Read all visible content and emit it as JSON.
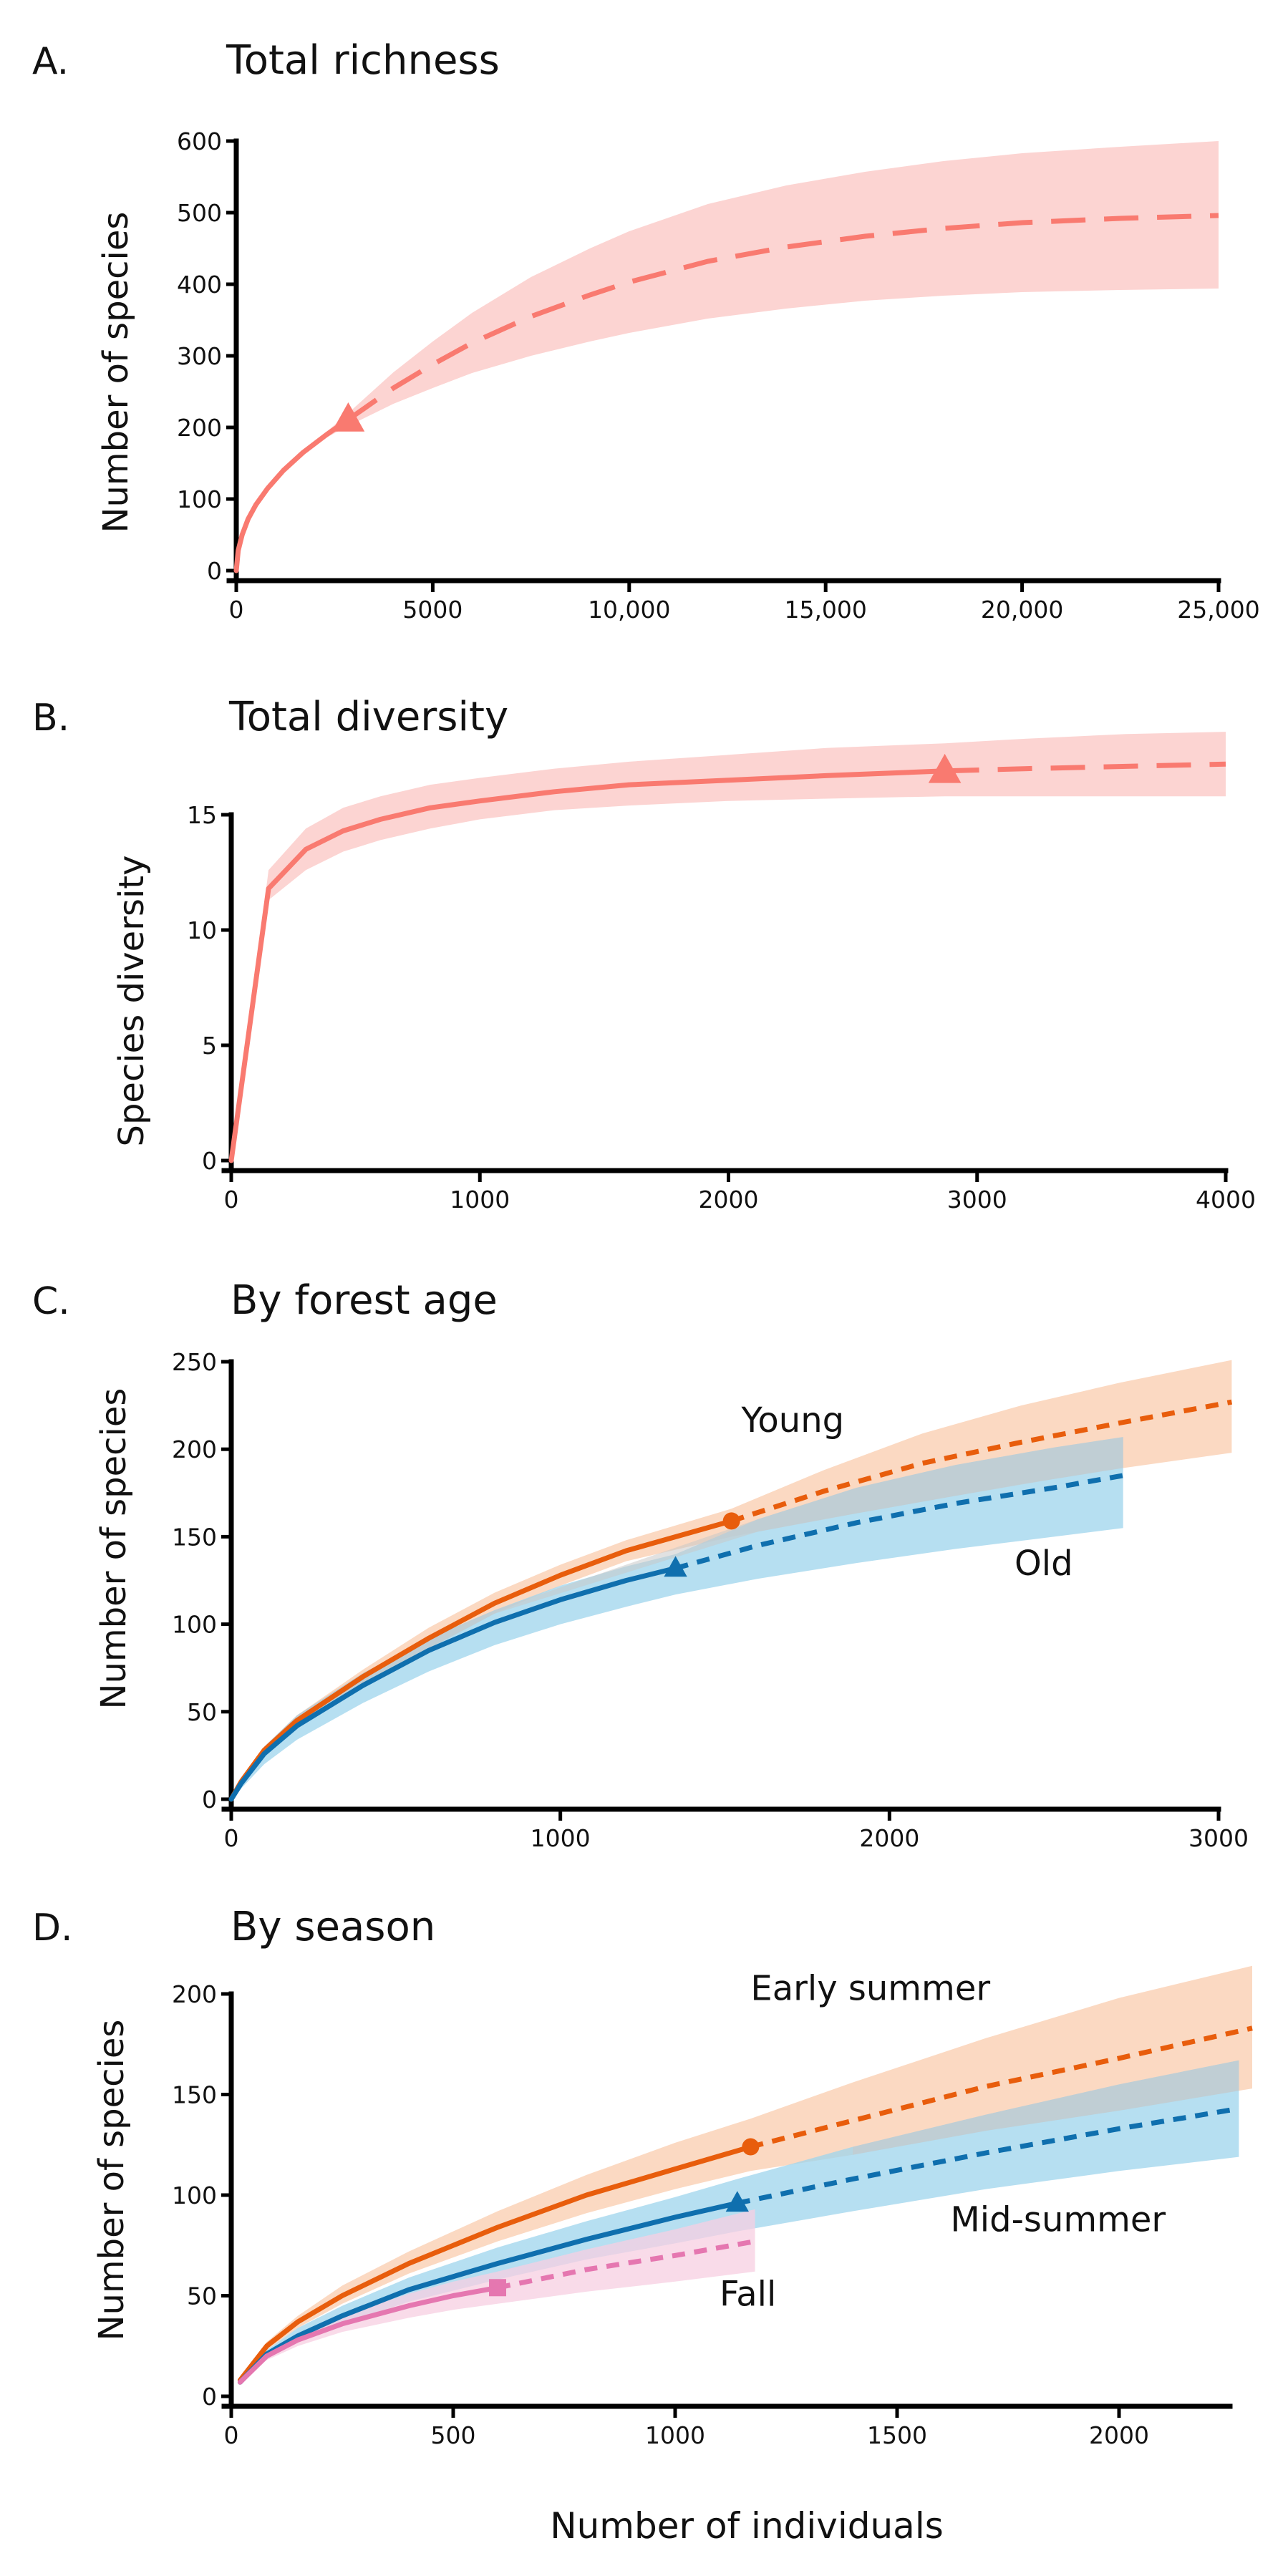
{
  "colors": {
    "total": "#f97a70",
    "total_band": "#fcd2d0",
    "young": "#e85d0c",
    "young_band": "#fbd7bf",
    "old": "#0f6fae",
    "old_band": "#9dd4ec",
    "overlap": "#c8c8c8",
    "fall": "#e577b0",
    "fall_band": "#f7cfe2"
  },
  "x_axis_label": "Number of individuals",
  "chart_data": [
    {
      "id": "A",
      "label": "A.",
      "type": "line",
      "title": "Total richness",
      "ylabel": "Number of species",
      "xlim": [
        0,
        25000
      ],
      "ylim": [
        0,
        600
      ],
      "xticks": [
        0,
        5000,
        10000,
        15000,
        20000,
        25000
      ],
      "xtick_labels": [
        "0",
        "5000",
        "10,000",
        "15,000",
        "20,000",
        "25,000"
      ],
      "yticks": [
        0,
        100,
        200,
        300,
        400,
        500,
        600
      ],
      "ytick_labels": [
        "0",
        "100",
        "200",
        "300",
        "400",
        "500",
        "600"
      ],
      "series": [
        {
          "name": "Total",
          "color": "#f97a70",
          "band": "#fcd2d0",
          "dash": "48 26",
          "marker": "triangle",
          "observed": {
            "x": 2850,
            "y": 211
          },
          "x": [
            0,
            50,
            150,
            300,
            500,
            800,
            1200,
            1700,
            2300,
            2850,
            4000,
            5000,
            6000,
            7500,
            9000,
            10000,
            12000,
            14000,
            16000,
            18000,
            20000,
            22500,
            25000
          ],
          "y": [
            0,
            28,
            50,
            72,
            92,
            115,
            140,
            165,
            190,
            211,
            255,
            288,
            318,
            355,
            385,
            403,
            432,
            452,
            467,
            478,
            486,
            492,
            496
          ],
          "lower": [
            0,
            28,
            50,
            72,
            92,
            115,
            140,
            163,
            186,
            202,
            233,
            255,
            276,
            300,
            320,
            332,
            352,
            366,
            377,
            384,
            389,
            392,
            394
          ],
          "upper": [
            0,
            28,
            50,
            72,
            92,
            115,
            140,
            167,
            194,
            220,
            277,
            320,
            360,
            410,
            450,
            474,
            512,
            538,
            557,
            572,
            583,
            592,
            600
          ]
        }
      ]
    },
    {
      "id": "B",
      "label": "B.",
      "type": "line",
      "title": "Total diversity",
      "ylabel": "Species diversity",
      "xlim": [
        0,
        4000
      ],
      "ylim": [
        0,
        15
      ],
      "xticks": [
        0,
        1000,
        2000,
        3000,
        4000
      ],
      "xtick_labels": [
        "0",
        "1000",
        "2000",
        "3000",
        "4000"
      ],
      "yticks": [
        0,
        5,
        10,
        15
      ],
      "ytick_labels": [
        "0",
        "5",
        "10",
        "15"
      ],
      "series": [
        {
          "name": "Total",
          "color": "#f97a70",
          "band": "#fcd2d0",
          "dash": "48 26",
          "marker": "triangle",
          "observed": {
            "x": 2870,
            "y": 16.9
          },
          "x": [
            0,
            150,
            300,
            450,
            600,
            800,
            1000,
            1300,
            1600,
            2000,
            2400,
            2870,
            3200,
            3600,
            4000
          ],
          "y": [
            0,
            11.8,
            13.5,
            14.3,
            14.8,
            15.3,
            15.6,
            16.0,
            16.3,
            16.5,
            16.7,
            16.9,
            17.0,
            17.1,
            17.2
          ],
          "lower": [
            0,
            11.3,
            12.6,
            13.4,
            13.9,
            14.4,
            14.8,
            15.2,
            15.4,
            15.6,
            15.7,
            15.8,
            15.8,
            15.8,
            15.8
          ],
          "upper": [
            0,
            12.6,
            14.4,
            15.3,
            15.8,
            16.3,
            16.6,
            17.0,
            17.3,
            17.6,
            17.9,
            18.1,
            18.3,
            18.5,
            18.6
          ]
        }
      ]
    },
    {
      "id": "C",
      "label": "C.",
      "type": "line",
      "title": "By forest age",
      "ylabel": "Number of species",
      "xlim": [
        0,
        3000
      ],
      "ylim": [
        0,
        250
      ],
      "xticks": [
        0,
        1000,
        2000,
        3000
      ],
      "xtick_labels": [
        "0",
        "1000",
        "2000",
        "3000"
      ],
      "yticks": [
        0,
        50,
        100,
        150,
        200,
        250
      ],
      "ytick_labels": [
        "0",
        "50",
        "100",
        "150",
        "200",
        "250"
      ],
      "annotations": [
        {
          "text": "Young",
          "x": 1550,
          "y": 210
        },
        {
          "text": "Old",
          "x": 2380,
          "y": 128
        }
      ],
      "series": [
        {
          "name": "Young",
          "color": "#e85d0c",
          "band": "#fbd7bf",
          "dash": "18 13",
          "marker": "circle",
          "observed": {
            "x": 1520,
            "y": 159
          },
          "x": [
            0,
            30,
            100,
            200,
            400,
            600,
            800,
            1000,
            1200,
            1520,
            1800,
            2100,
            2400,
            2700,
            3040
          ],
          "y": [
            0,
            10,
            28,
            45,
            70,
            92,
            112,
            128,
            142,
            159,
            176,
            192,
            204,
            215,
            227
          ],
          "lower": [
            0,
            9,
            26,
            42,
            66,
            86,
            106,
            122,
            136,
            150,
            160,
            170,
            180,
            189,
            198
          ],
          "upper": [
            0,
            11,
            30,
            48,
            74,
            98,
            118,
            134,
            148,
            166,
            188,
            209,
            225,
            238,
            251
          ]
        },
        {
          "name": "Old",
          "color": "#0f6fae",
          "band": "#9dd4ec",
          "dash": "18 13",
          "marker": "triangle",
          "observed": {
            "x": 1350,
            "y": 132
          },
          "x": [
            0,
            30,
            100,
            200,
            400,
            600,
            800,
            1000,
            1200,
            1350,
            1600,
            1900,
            2200,
            2500,
            2710
          ],
          "y": [
            0,
            9,
            26,
            42,
            65,
            85,
            101,
            114,
            125,
            132,
            145,
            158,
            169,
            178,
            185
          ],
          "lower": [
            0,
            6,
            20,
            34,
            55,
            73,
            88,
            100,
            110,
            117,
            126,
            135,
            143,
            150,
            155
          ],
          "upper": [
            0,
            12,
            30,
            48,
            72,
            92,
            108,
            122,
            133,
            140,
            160,
            178,
            191,
            201,
            207
          ]
        }
      ]
    },
    {
      "id": "D",
      "label": "D.",
      "type": "line",
      "title": "By season",
      "ylabel": "Number of species",
      "xlim": [
        0,
        2250
      ],
      "ylim": [
        0,
        200
      ],
      "xticks": [
        0,
        500,
        1000,
        1500,
        2000
      ],
      "xtick_labels": [
        "0",
        "500",
        "1000",
        "1500",
        "2000"
      ],
      "yticks": [
        0,
        50,
        100,
        150,
        200
      ],
      "ytick_labels": [
        "0",
        "50",
        "100",
        "150",
        "200"
      ],
      "annotations": [
        {
          "text": "Early summer",
          "x": 1170,
          "y": 197
        },
        {
          "text": "Mid-summer",
          "x": 1620,
          "y": 82
        },
        {
          "text": "Fall",
          "x": 1100,
          "y": 45
        }
      ],
      "series": [
        {
          "name": "Early summer",
          "color": "#e85d0c",
          "band": "#fbd7bf",
          "dash": "18 13",
          "marker": "circle",
          "observed": {
            "x": 1170,
            "y": 124
          },
          "x": [
            20,
            80,
            150,
            250,
            400,
            600,
            800,
            1000,
            1170,
            1400,
            1700,
            2000,
            2300
          ],
          "y": [
            8,
            25,
            37,
            50,
            66,
            84,
            100,
            113,
            124,
            137,
            154,
            168,
            183
          ],
          "lower": [
            8,
            23,
            34,
            46,
            61,
            77,
            91,
            103,
            112,
            120,
            132,
            142,
            153
          ],
          "upper": [
            8,
            27,
            40,
            55,
            72,
            92,
            110,
            126,
            138,
            156,
            178,
            198,
            214
          ]
        },
        {
          "name": "Mid-summer",
          "color": "#0f6fae",
          "band": "#9dd4ec",
          "dash": "18 13",
          "marker": "triangle",
          "observed": {
            "x": 1140,
            "y": 96
          },
          "x": [
            20,
            80,
            150,
            250,
            400,
            600,
            800,
            1000,
            1140,
            1400,
            1700,
            2000,
            2270
          ],
          "y": [
            7,
            21,
            30,
            40,
            53,
            66,
            78,
            89,
            96,
            108,
            121,
            133,
            143
          ],
          "lower": [
            7,
            19,
            27,
            36,
            47,
            58,
            68,
            76,
            82,
            92,
            103,
            112,
            119
          ],
          "upper": [
            7,
            23,
            34,
            45,
            59,
            74,
            87,
            99,
            108,
            124,
            140,
            155,
            167
          ]
        },
        {
          "name": "Fall",
          "color": "#e577b0",
          "band": "#f7cfe2",
          "dash": "18 13",
          "marker": "square",
          "observed": {
            "x": 600,
            "y": 54
          },
          "x": [
            20,
            80,
            150,
            250,
            400,
            500,
            600,
            800,
            1000,
            1180
          ],
          "y": [
            7,
            20,
            28,
            36,
            45,
            50,
            54,
            63,
            70,
            77
          ],
          "lower": [
            7,
            18,
            25,
            32,
            39,
            43,
            46,
            52,
            57,
            62
          ],
          "upper": [
            7,
            22,
            31,
            40,
            51,
            57,
            62,
            73,
            83,
            93
          ]
        }
      ]
    }
  ]
}
